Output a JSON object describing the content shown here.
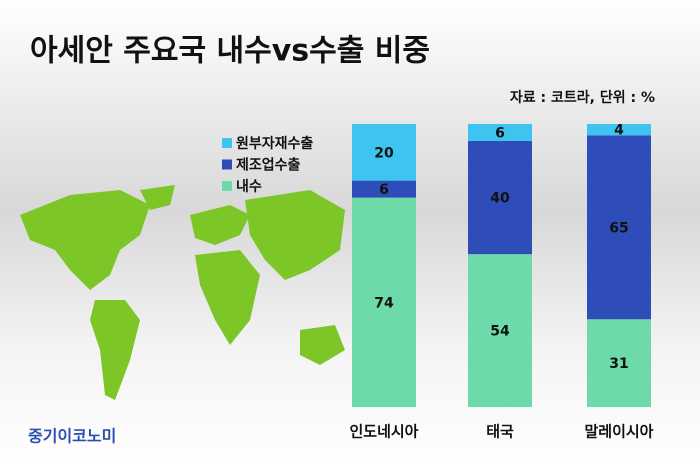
{
  "chart_data": {
    "type": "stacked_bar",
    "title": "아세안 주요국 내수vs수출 비중",
    "subtitle": "자료 : 코트라, 단위 : %",
    "watermark": "중기이코노미",
    "categories": [
      "인도네시아",
      "태국",
      "말레이시아"
    ],
    "series": [
      {
        "name": "내수",
        "color": "#6ddaaa",
        "values": [
          74,
          54,
          31
        ]
      },
      {
        "name": "제조업수출",
        "color": "#2f4db8",
        "values": [
          6,
          40,
          65
        ]
      },
      {
        "name": "원부자재수출",
        "color": "#3ec4f0",
        "values": [
          20,
          6,
          4
        ]
      }
    ],
    "ylim": [
      0,
      100
    ]
  }
}
